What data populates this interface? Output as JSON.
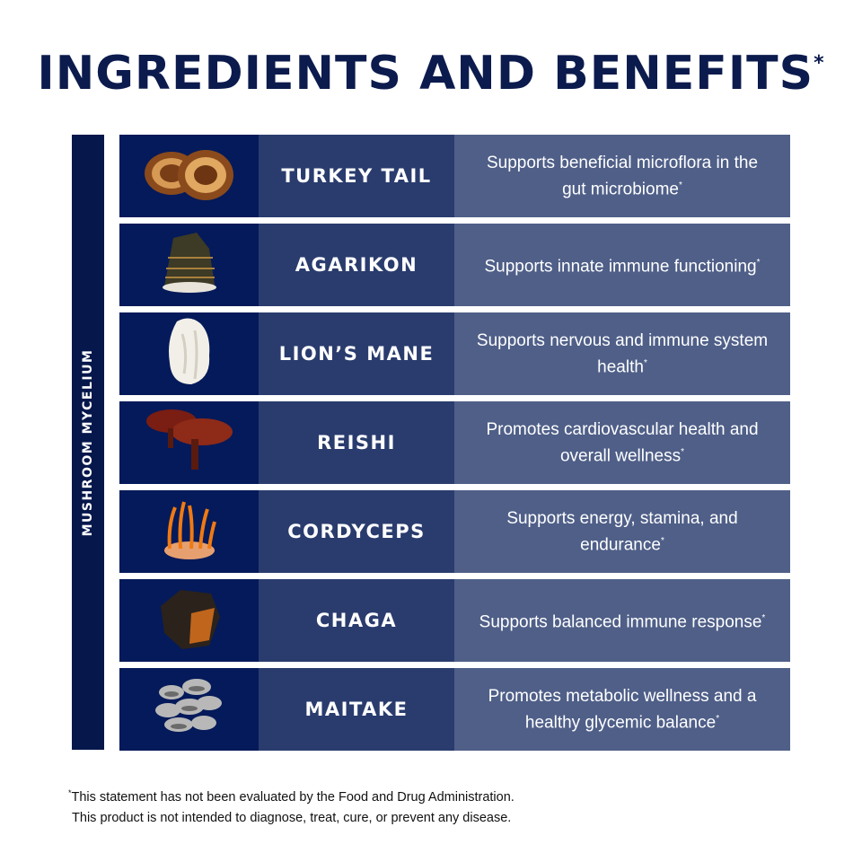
{
  "title": "INGREDIENTS AND BENEFITS",
  "title_mark": "*",
  "sidebar_label": "MUSHROOM MYCELIUM",
  "rows": [
    {
      "name": "TURKEY TAIL",
      "benefit": "Supports beneficial microflora in the gut microbiome",
      "mark": "*",
      "icon": "turkey-tail-mushroom"
    },
    {
      "name": "AGARIKON",
      "benefit": "Supports innate immune functioning",
      "mark": "*",
      "icon": "agarikon-mushroom"
    },
    {
      "name": "LION’S MANE",
      "benefit": "Supports nervous and immune system health",
      "mark": "*",
      "icon": "lions-mane-mushroom"
    },
    {
      "name": "REISHI",
      "benefit": "Promotes cardiovascular health and overall wellness",
      "mark": "*",
      "icon": "reishi-mushroom"
    },
    {
      "name": "CORDYCEPS",
      "benefit": "Supports energy, stamina, and endurance",
      "mark": "*",
      "icon": "cordyceps-mushroom"
    },
    {
      "name": "CHAGA",
      "benefit": "Supports balanced immune response",
      "mark": "*",
      "icon": "chaga-mushroom"
    },
    {
      "name": "MAITAKE",
      "benefit": "Promotes metabolic wellness and a healthy glycemic balance",
      "mark": "*",
      "icon": "maitake-mushroom"
    }
  ],
  "footnote": {
    "mark": "*",
    "line1": "This statement has not been evaluated by the Food and Drug Administration.",
    "line2": "This product is not intended to diagnose, treat, cure, or prevent any disease."
  },
  "colors": {
    "navy": "#0c1b4d",
    "image_cell": "#041a5a",
    "name_cell": "#2a3c6e",
    "benefit_cell": "#4f5f88"
  }
}
